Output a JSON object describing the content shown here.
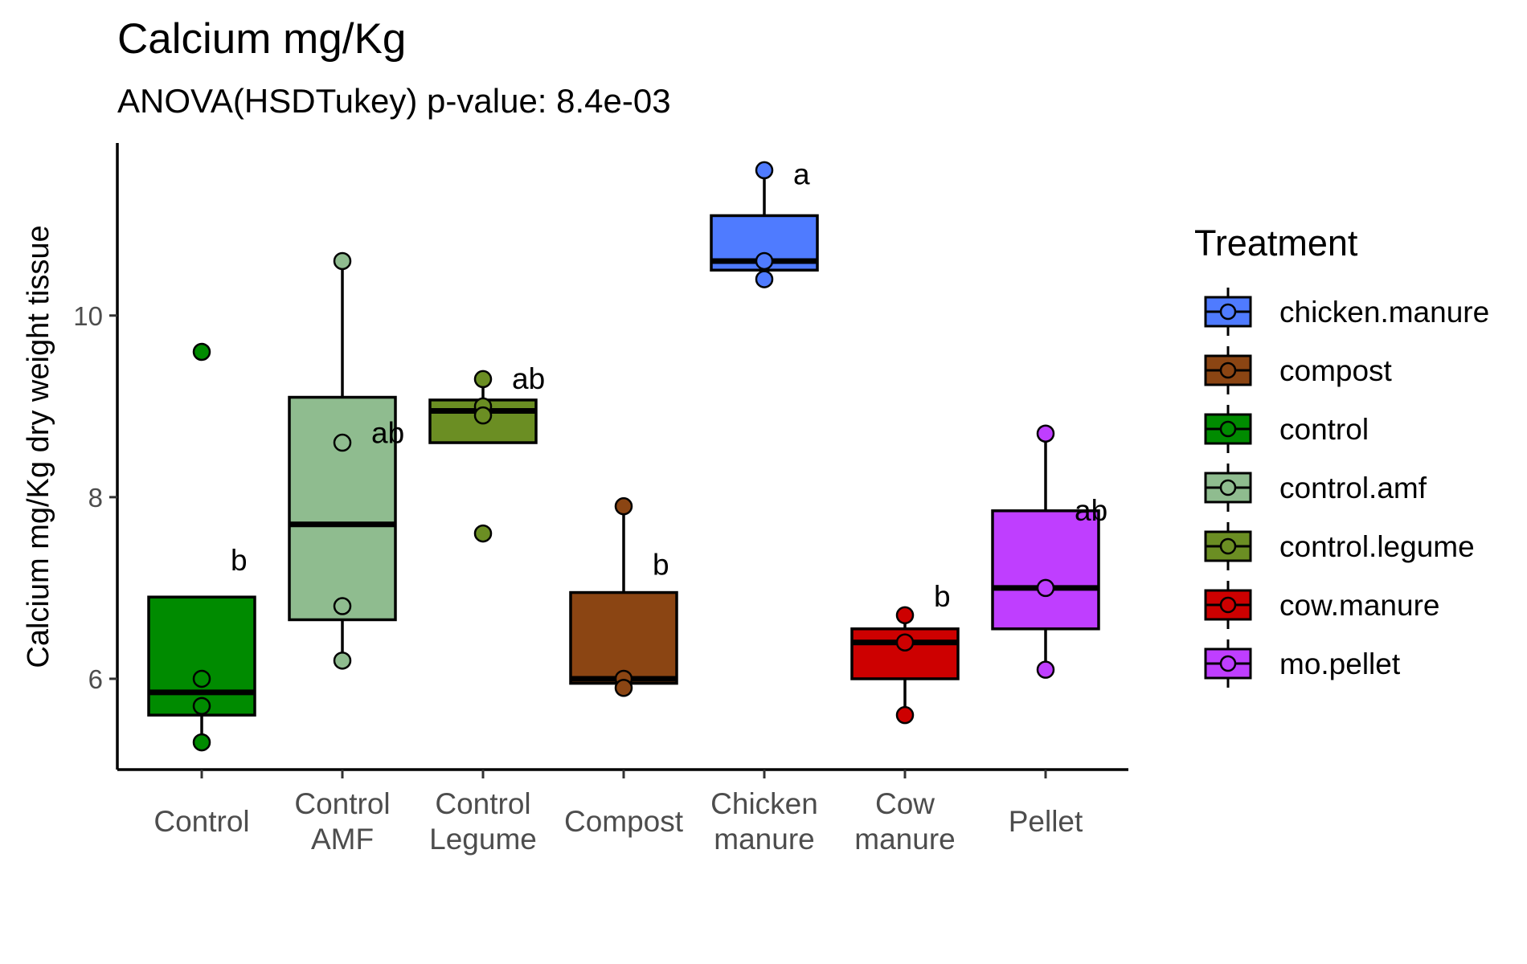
{
  "chart_data": {
    "type": "box",
    "title": "Calcium mg/Kg",
    "subtitle": "ANOVA(HSDTukey) p-value: 8.4e-03",
    "ylabel": "Calcium mg/Kg dry weight tissue",
    "xlabel": "",
    "ylim": [
      5.0,
      11.9
    ],
    "yticks": [
      6,
      8,
      10
    ],
    "legend": {
      "title": "Treatment",
      "placement": "right",
      "items": [
        {
          "label": "chicken.manure",
          "color": "#4f7bff"
        },
        {
          "label": "compost",
          "color": "#8b4513"
        },
        {
          "label": "control",
          "color": "#008b00"
        },
        {
          "label": "control.amf",
          "color": "#8fbc8f"
        },
        {
          "label": "control.legume",
          "color": "#6b8e23"
        },
        {
          "label": "cow.manure",
          "color": "#cd0000"
        },
        {
          "label": "mo.pellet",
          "color": "#bf3eff"
        }
      ]
    },
    "groups": [
      {
        "category_lines": [
          "Control"
        ],
        "color": "#008b00",
        "q1": 5.6,
        "median": 5.85,
        "q3": 6.9,
        "whisker_low": 5.3,
        "whisker_high": 6.9,
        "points": [
          9.6,
          6.0,
          5.7,
          5.3
        ],
        "letter": "b",
        "letter_y": 7.3
      },
      {
        "category_lines": [
          "Control",
          "AMF"
        ],
        "color": "#8fbc8f",
        "q1": 6.65,
        "median": 7.7,
        "q3": 9.1,
        "whisker_low": 6.2,
        "whisker_high": 10.6,
        "points": [
          10.6,
          8.6,
          6.8,
          6.2
        ],
        "letter": "ab",
        "letter_y": 8.7
      },
      {
        "category_lines": [
          "Control",
          "Legume"
        ],
        "color": "#6b8e23",
        "q1": 8.6,
        "median": 8.95,
        "q3": 9.07,
        "whisker_low": 8.6,
        "whisker_high": 9.3,
        "points": [
          9.3,
          9.0,
          8.9,
          7.6
        ],
        "letter": "ab",
        "letter_y": 9.3
      },
      {
        "category_lines": [
          "Compost"
        ],
        "color": "#8b4513",
        "q1": 5.95,
        "median": 6.0,
        "q3": 6.95,
        "whisker_low": 5.95,
        "whisker_high": 7.9,
        "points": [
          7.9,
          6.0,
          5.9
        ],
        "letter": "b",
        "letter_y": 7.25
      },
      {
        "category_lines": [
          "Chicken",
          "manure"
        ],
        "color": "#4f7bff",
        "q1": 10.5,
        "median": 10.6,
        "q3": 11.1,
        "whisker_low": 10.5,
        "whisker_high": 11.6,
        "points": [
          11.6,
          10.6,
          10.4
        ],
        "letter": "a",
        "letter_y": 11.55
      },
      {
        "category_lines": [
          "Cow",
          "manure"
        ],
        "color": "#cd0000",
        "q1": 6.0,
        "median": 6.4,
        "q3": 6.55,
        "whisker_low": 5.6,
        "whisker_high": 6.7,
        "points": [
          6.7,
          6.4,
          5.6
        ],
        "letter": "b",
        "letter_y": 6.9
      },
      {
        "category_lines": [
          "Pellet"
        ],
        "color": "#bf3eff",
        "q1": 6.55,
        "median": 7.0,
        "q3": 7.85,
        "whisker_low": 6.1,
        "whisker_high": 8.7,
        "points": [
          8.7,
          7.0,
          6.1
        ],
        "letter": "ab",
        "letter_y": 7.85
      }
    ]
  }
}
